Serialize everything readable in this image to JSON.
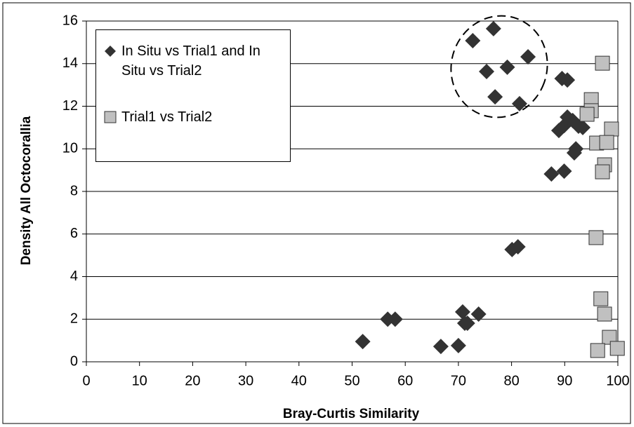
{
  "chart_data": {
    "type": "scatter",
    "x_label": "Bray-Curtis Similarity",
    "y_label": "Density All Octocorallia",
    "xlim": [
      0,
      100
    ],
    "xticks": [
      0,
      10,
      20,
      30,
      40,
      50,
      60,
      70,
      80,
      90,
      100
    ],
    "ylim": [
      0,
      16
    ],
    "yticks": [
      0,
      2,
      4,
      6,
      8,
      10,
      12,
      14,
      16
    ],
    "grid": true,
    "series": [
      {
        "name": "In Situ vs Trial1 and In Situ vs Trial2",
        "color": "#333333",
        "marker": "diamond",
        "x": [
          52.0,
          56.7,
          58.1,
          66.7,
          70.0,
          70.8,
          71.2,
          71.7,
          73.8,
          80.1,
          81.2,
          72.7,
          76.6,
          75.3,
          76.9,
          79.2,
          81.5,
          83.1,
          87.5,
          89.9,
          89.5,
          90.5,
          88.9,
          89.9,
          90.5,
          91.5,
          91.8,
          92.1,
          92.6,
          93.4
        ],
        "values": [
          0.95,
          2.0,
          2.0,
          0.72,
          0.76,
          2.34,
          1.81,
          1.81,
          2.24,
          5.27,
          5.4,
          15.08,
          15.64,
          13.63,
          12.44,
          13.83,
          12.12,
          14.32,
          8.82,
          8.95,
          13.3,
          13.23,
          10.86,
          11.09,
          11.49,
          11.33,
          9.81,
          10.0,
          11.06,
          11.0
        ]
      },
      {
        "name": "Trial1 vs Trial2",
        "color": "#c0c0c0",
        "marker": "square",
        "x": [
          97.1,
          95.0,
          95.0,
          94.2,
          96.0,
          98.8,
          97.9,
          97.5,
          97.1,
          95.9,
          96.8,
          97.5,
          98.4,
          96.2,
          99.9
        ],
        "values": [
          14.02,
          12.31,
          11.79,
          11.62,
          10.27,
          10.93,
          10.3,
          9.25,
          8.92,
          5.83,
          2.96,
          2.24,
          1.15,
          0.53,
          0.63
        ]
      }
    ]
  }
}
